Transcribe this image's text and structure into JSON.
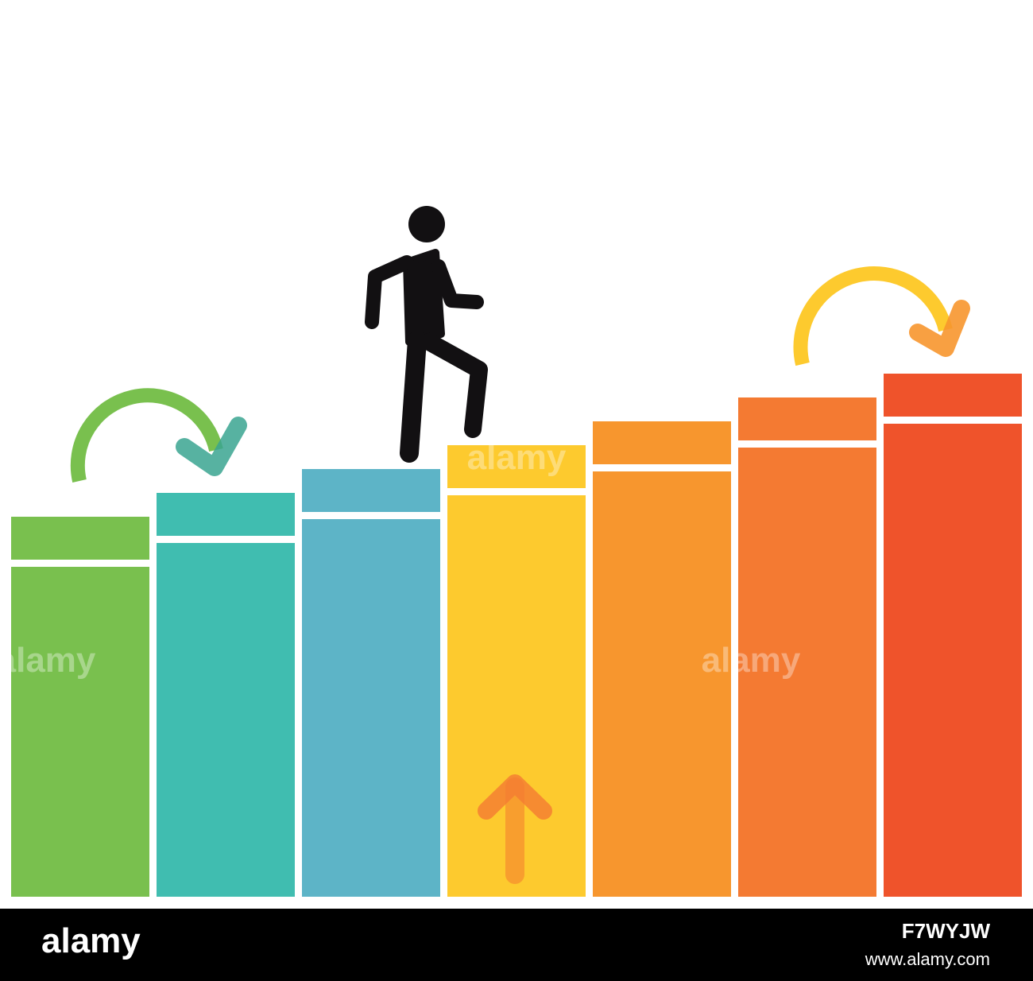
{
  "footer": {
    "logo": "alamy",
    "site": "www.alamy.com",
    "image_id": "F7WYJW"
  },
  "watermark": "alamy"
}
